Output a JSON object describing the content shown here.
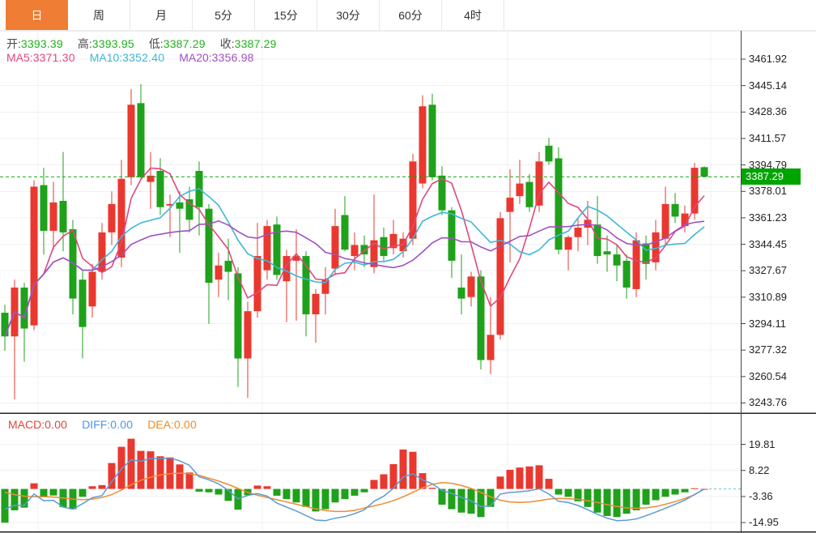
{
  "tabs": {
    "items": [
      {
        "label": "日",
        "active": true
      },
      {
        "label": "周",
        "active": false
      },
      {
        "label": "月",
        "active": false
      },
      {
        "label": "5分",
        "active": false
      },
      {
        "label": "15分",
        "active": false
      },
      {
        "label": "30分",
        "active": false
      },
      {
        "label": "60分",
        "active": false
      },
      {
        "label": "4时",
        "active": false
      }
    ]
  },
  "legend": {
    "ohlc": [
      {
        "label": "开:",
        "value": "3393.39"
      },
      {
        "label": "高:",
        "value": "3393.95"
      },
      {
        "label": "低:",
        "value": "3387.29"
      },
      {
        "label": "收:",
        "value": "3387.29"
      }
    ],
    "ma": [
      {
        "label": "MA5:",
        "value": "3371.30"
      },
      {
        "label": "MA10:",
        "value": "3352.40"
      },
      {
        "label": "MA20:",
        "value": "3356.98"
      }
    ],
    "macd": [
      {
        "label": "MACD:",
        "value": "0.00"
      },
      {
        "label": "DIFF:",
        "value": "0.00"
      },
      {
        "label": "DEA:",
        "value": "0.00"
      }
    ]
  },
  "colors": {
    "tab_active_bg": "#ef7d33",
    "up_candle": "#e9382f",
    "down_candle": "#1fa11b",
    "ohlc_value_green": "#1db41a",
    "ma5": "#e0477e",
    "ma10": "#3fb6d8",
    "ma20": "#a050c0",
    "macd_label": "#e3453c",
    "diff_label": "#4f94e8",
    "dea_label": "#f08c1e",
    "diff_line": "#5b9bd5",
    "dea_line": "#ef8b34",
    "price_line": "#0fa50f",
    "price_badge_bg": "#00a400",
    "grid": "#f0f0f0",
    "axis": "#444444",
    "separator": "#222222",
    "macd_zero_dash": "#66c4cc"
  },
  "chart_data": {
    "type": "candlestick+macd",
    "main": {
      "ticks": [
        "3461.92",
        "3445.14",
        "3428.36",
        "3411.57",
        "3394.79",
        "3378.01",
        "3361.23",
        "3344.45",
        "3327.67",
        "3310.89",
        "3294.11",
        "3277.32",
        "3260.54",
        "3243.76"
      ],
      "axis_top_value": 3461.92,
      "axis_bottom_value": 3243.76,
      "current_price": 3387.29,
      "current_price_label": "3387.29",
      "ma_windows": [
        5,
        10,
        20
      ],
      "candles": [
        [
          3301,
          3306,
          3277,
          3286
        ],
        [
          3286,
          3322,
          3246,
          3317
        ],
        [
          3317,
          3320,
          3270,
          3291
        ],
        [
          3293,
          3385,
          3290,
          3381
        ],
        [
          3382,
          3393,
          3338,
          3353
        ],
        [
          3353,
          3384,
          3341,
          3371
        ],
        [
          3372,
          3403,
          3340,
          3352
        ],
        [
          3354,
          3360,
          3300,
          3310
        ],
        [
          3322,
          3328,
          3272,
          3292
        ],
        [
          3305,
          3332,
          3298,
          3327
        ],
        [
          3327,
          3358,
          3322,
          3352
        ],
        [
          3352,
          3378,
          3344,
          3370
        ],
        [
          3336,
          3398,
          3330,
          3386
        ],
        [
          3387,
          3443,
          3382,
          3433
        ],
        [
          3434,
          3446,
          3385,
          3387
        ],
        [
          3384,
          3403,
          3367,
          3388
        ],
        [
          3391,
          3399,
          3363,
          3368
        ],
        [
          3369,
          3376,
          3349,
          3370
        ],
        [
          3371,
          3378,
          3339,
          3367
        ],
        [
          3373,
          3381,
          3352,
          3360
        ],
        [
          3391,
          3397,
          3350,
          3368
        ],
        [
          3367,
          3370,
          3294,
          3320
        ],
        [
          3322,
          3339,
          3311,
          3331
        ],
        [
          3334,
          3348,
          3309,
          3327
        ],
        [
          3326,
          3330,
          3254,
          3272
        ],
        [
          3272,
          3308,
          3247,
          3302
        ],
        [
          3302,
          3358,
          3298,
          3337
        ],
        [
          3328,
          3360,
          3322,
          3356
        ],
        [
          3357,
          3362,
          3322,
          3325
        ],
        [
          3321,
          3341,
          3295,
          3337
        ],
        [
          3334,
          3354,
          3296,
          3337
        ],
        [
          3337,
          3340,
          3286,
          3300
        ],
        [
          3300,
          3316,
          3282,
          3313
        ],
        [
          3313,
          3330,
          3300,
          3322
        ],
        [
          3329,
          3367,
          3325,
          3356
        ],
        [
          3363,
          3375,
          3340,
          3341
        ],
        [
          3337,
          3352,
          3328,
          3344
        ],
        [
          3344,
          3350,
          3330,
          3338
        ],
        [
          3330,
          3376,
          3326,
          3347
        ],
        [
          3349,
          3355,
          3334,
          3337
        ],
        [
          3342,
          3360,
          3338,
          3351
        ],
        [
          3340,
          3352,
          3336,
          3348
        ],
        [
          3348,
          3402,
          3344,
          3397
        ],
        [
          3383,
          3439,
          3380,
          3432
        ],
        [
          3433,
          3440,
          3385,
          3387
        ],
        [
          3388,
          3394,
          3363,
          3366
        ],
        [
          3366,
          3368,
          3323,
          3334
        ],
        [
          3317,
          3338,
          3300,
          3310
        ],
        [
          3311,
          3327,
          3305,
          3324
        ],
        [
          3324,
          3328,
          3265,
          3271
        ],
        [
          3271,
          3311,
          3262,
          3287
        ],
        [
          3287,
          3365,
          3284,
          3361
        ],
        [
          3365,
          3392,
          3333,
          3374
        ],
        [
          3375,
          3398,
          3370,
          3383
        ],
        [
          3384,
          3389,
          3365,
          3368
        ],
        [
          3369,
          3403,
          3365,
          3397
        ],
        [
          3407,
          3412,
          3395,
          3397
        ],
        [
          3399,
          3406,
          3338,
          3341
        ],
        [
          3341,
          3350,
          3328,
          3349
        ],
        [
          3349,
          3361,
          3340,
          3355
        ],
        [
          3355,
          3372,
          3344,
          3360
        ],
        [
          3357,
          3375,
          3332,
          3337
        ],
        [
          3340,
          3350,
          3327,
          3338
        ],
        [
          3338,
          3344,
          3321,
          3331
        ],
        [
          3334,
          3338,
          3310,
          3317
        ],
        [
          3316,
          3352,
          3311,
          3347
        ],
        [
          3345,
          3350,
          3322,
          3332
        ],
        [
          3333,
          3360,
          3328,
          3352
        ],
        [
          3348,
          3381,
          3344,
          3370
        ],
        [
          3370,
          3377,
          3358,
          3362
        ],
        [
          3356,
          3369,
          3352,
          3364
        ],
        [
          3364,
          3396,
          3360,
          3393
        ],
        [
          3393.39,
          3393.95,
          3387.29,
          3387.29
        ]
      ]
    },
    "macd": {
      "ticks": [
        "19.81",
        "8.22",
        "-3.36",
        "-14.95"
      ],
      "hist": [
        -15,
        -9.5,
        -8.3,
        2.5,
        -3.4,
        -2.9,
        -8.1,
        -9,
        -3.5,
        1.2,
        1.7,
        11.5,
        18.7,
        22.3,
        16.9,
        16.7,
        14.5,
        14,
        10.9,
        7.3,
        -1.2,
        -1.5,
        -2.5,
        -5.3,
        -9.2,
        -2.8,
        1.5,
        1.2,
        -3,
        -4.5,
        -6,
        -8,
        -10,
        -9,
        -6,
        -4.5,
        -3,
        -1.5,
        4,
        6.5,
        11,
        17.5,
        16.5,
        7,
        0.5,
        -7,
        -9,
        -10.5,
        -11,
        -12.5,
        -8,
        5.5,
        8.5,
        9.5,
        10,
        10.5,
        4.5,
        -2.5,
        -3.5,
        -5.5,
        -8,
        -10.5,
        -12,
        -12.5,
        -11,
        -9.5,
        -7,
        -5,
        -3.5,
        -2.5,
        -1.5,
        0.3,
        0
      ],
      "dea": [
        -1.5,
        -2.5,
        -3.2,
        -3.5,
        -3.5,
        -3.6,
        -4,
        -4.5,
        -4.8,
        -4.5,
        -3.8,
        -2.5,
        -0.5,
        1.8,
        3.8,
        5.2,
        6.2,
        6.8,
        7,
        6.8,
        6,
        4.8,
        3.5,
        2,
        0.2,
        -1.5,
        -2.8,
        -3.8,
        -4.8,
        -5.8,
        -6.8,
        -7.8,
        -8.8,
        -9.6,
        -10,
        -10,
        -9.5,
        -8.5,
        -7.5,
        -6.5,
        -5.2,
        -3.5,
        -1.5,
        0.5,
        2,
        2.8,
        2.5,
        1.5,
        0.2,
        -1.5,
        -3.5,
        -5,
        -5.8,
        -6,
        -5.8,
        -5.2,
        -4.5,
        -4.2,
        -4.3,
        -4.6,
        -5.2,
        -6,
        -7,
        -7.8,
        -8.4,
        -8.6,
        -8.4,
        -7.8,
        -6.8,
        -5.6,
        -4.2,
        -2.6,
        0
      ]
    }
  }
}
